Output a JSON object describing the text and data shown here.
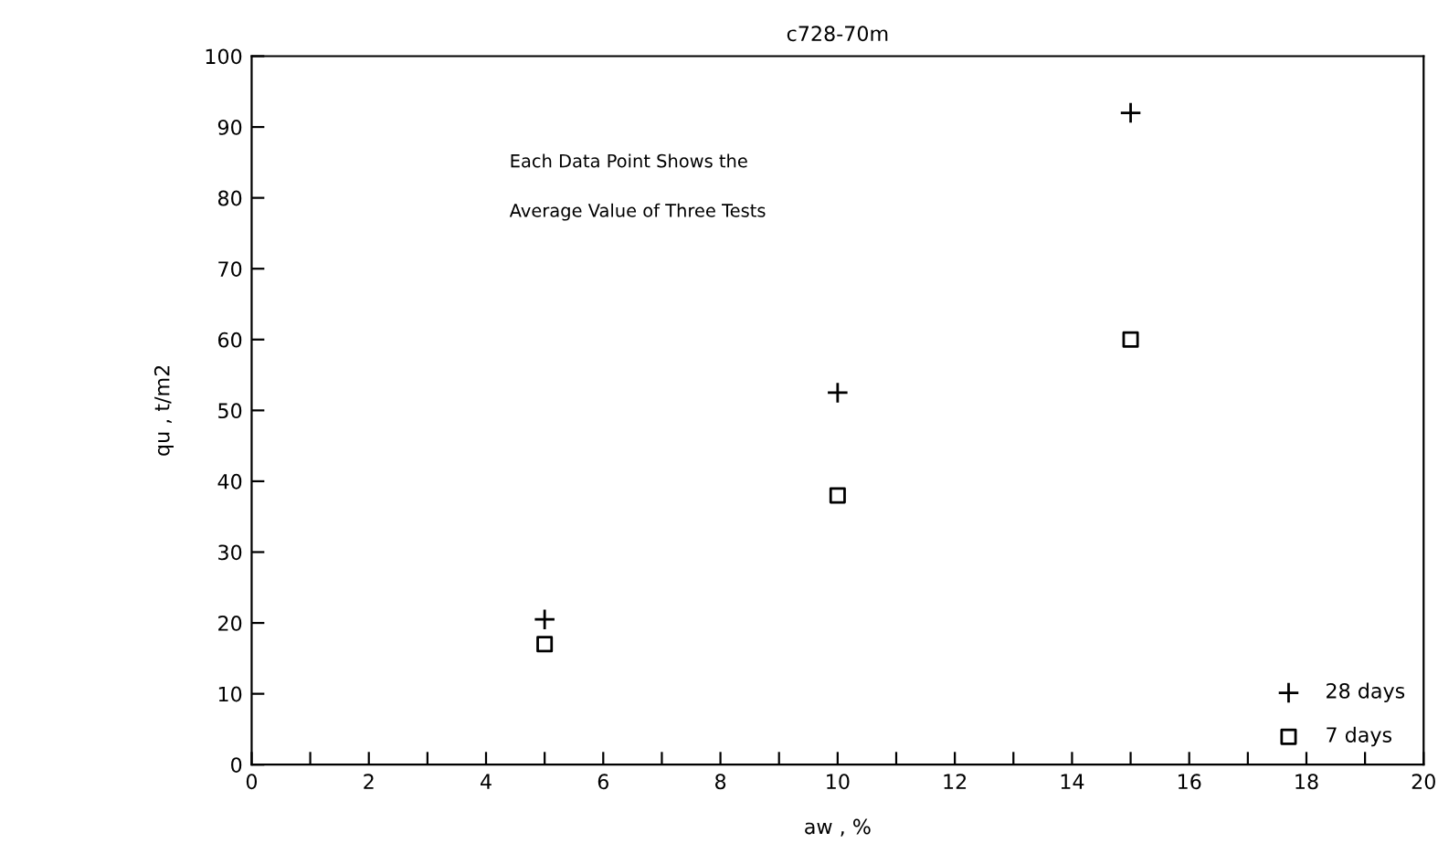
{
  "chart_data": {
    "type": "scatter",
    "title": "c728-70m",
    "xlabel": "aw , %",
    "ylabel": "qu , t/m2",
    "annotations": [
      "Each Data Point Shows the",
      "Average Value of Three Tests"
    ],
    "series": [
      {
        "name": "28 days",
        "color": "#000000",
        "marker": "cross",
        "x": [
          5,
          10,
          15
        ],
        "values": [
          20.5,
          52.5,
          92
        ]
      },
      {
        "name": "7 days",
        "color": "#000000",
        "marker": "square",
        "x": [
          5,
          10,
          15
        ],
        "values": [
          17,
          38,
          60
        ]
      }
    ],
    "xlim": [
      0,
      20
    ],
    "ylim": [
      0,
      100
    ],
    "xticks": [
      0,
      {
        "value": 1,
        "label": null
      },
      2,
      {
        "value": 3,
        "label": null
      },
      4,
      {
        "value": 5,
        "label": null
      },
      6,
      {
        "value": 7,
        "label": null
      },
      8,
      {
        "value": 9,
        "label": null
      },
      10,
      {
        "value": 11,
        "label": null
      },
      12,
      {
        "value": 13,
        "label": null
      },
      14,
      {
        "value": 15,
        "label": null
      },
      16,
      {
        "value": 17,
        "label": null
      },
      18,
      {
        "value": 19,
        "label": null
      },
      20
    ],
    "yticks": [
      0,
      10,
      20,
      30,
      40,
      50,
      60,
      70,
      80,
      90,
      100
    ],
    "grid": false,
    "legend": "bottom right"
  }
}
